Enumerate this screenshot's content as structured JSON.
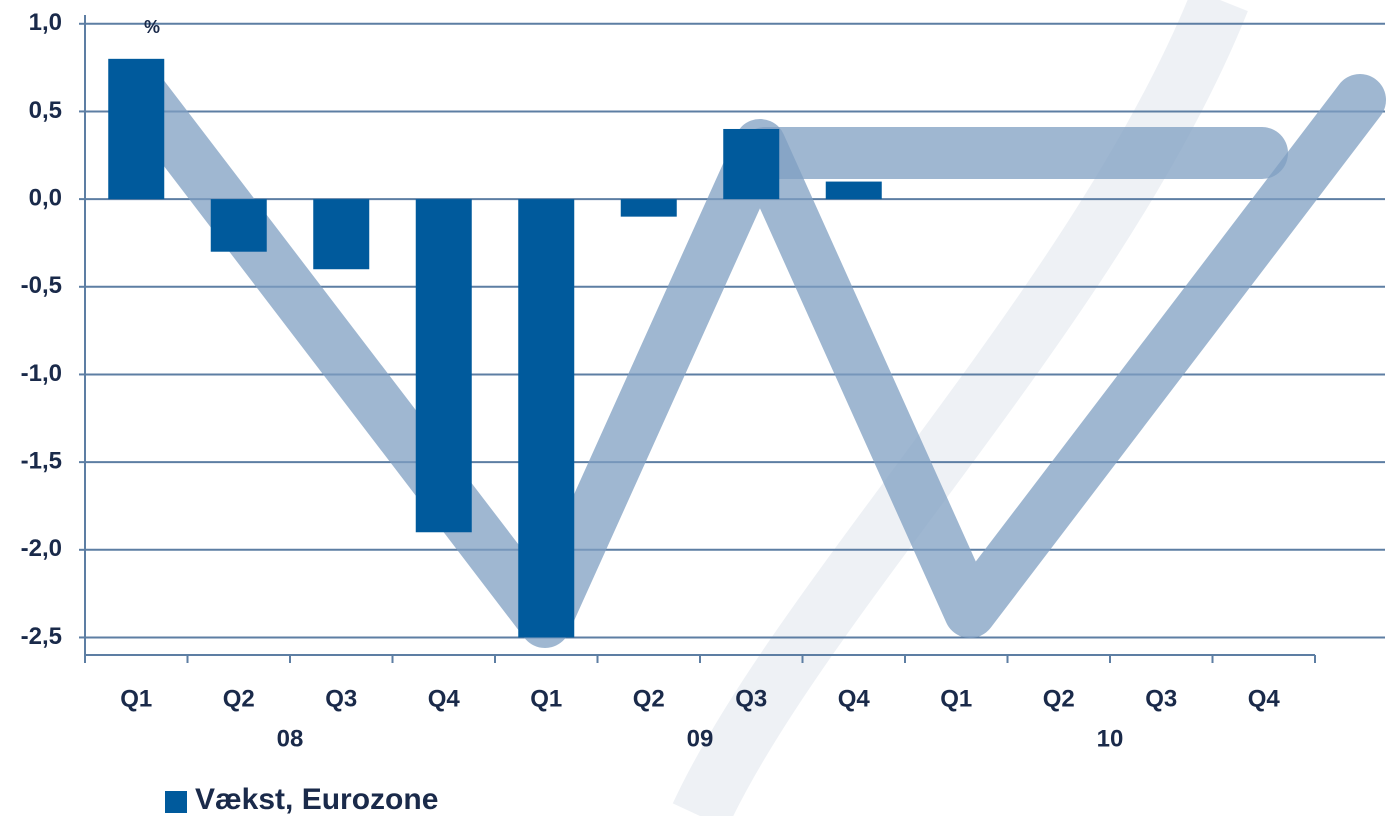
{
  "chart_data": {
    "type": "bar",
    "unit_label": "%",
    "categories": [
      "Q1",
      "Q2",
      "Q3",
      "Q4",
      "Q1",
      "Q2",
      "Q3",
      "Q4",
      "Q1",
      "Q2",
      "Q3",
      "Q4"
    ],
    "groups": [
      "08",
      "09",
      "10"
    ],
    "series": [
      {
        "name": "Vækst, Eurozone",
        "color": "#005a9c",
        "values": [
          0.8,
          -0.3,
          -0.4,
          -1.9,
          -2.5,
          -0.1,
          0.4,
          0.1,
          null,
          null,
          null,
          null
        ]
      }
    ],
    "ylim": [
      -2.6,
      1.05
    ],
    "yticks": [
      {
        "value": 1.0,
        "label": "1,0"
      },
      {
        "value": 0.5,
        "label": "0,5"
      },
      {
        "value": 0,
        "label": "0,0"
      },
      {
        "value": -0.5,
        "label": "-0,5"
      },
      {
        "value": -1.0,
        "label": "-1,0"
      },
      {
        "value": -1.5,
        "label": "-1,5"
      },
      {
        "value": -2.0,
        "label": "-2,0"
      },
      {
        "value": -2.5,
        "label": "-2,5"
      }
    ],
    "grid": true
  }
}
